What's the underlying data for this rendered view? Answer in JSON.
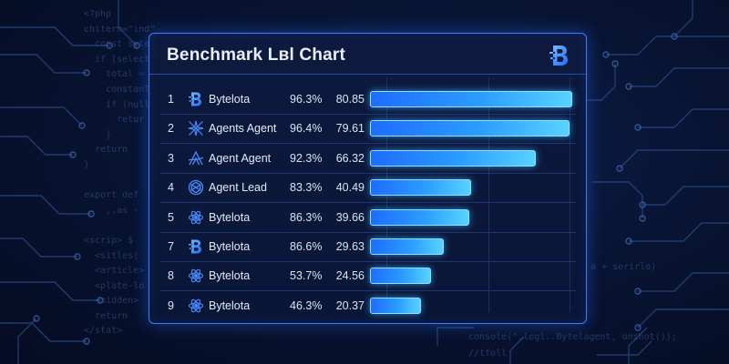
{
  "background_code": {
    "left": [
      "<?php",
      "chiterm=\"ind\"",
      "  const syte",
      "  if [select",
      "    total =",
      "    constanT",
      "    if (null",
      "      retur",
      "    }",
      "  return",
      "}",
      "",
      "export def",
      "    ,.as -",
      "",
      "<scrip> $",
      "  <sitles(",
      "  <article>",
      "  <plate-lo",
      "  <midden>",
      "  return",
      "</stat>"
    ],
    "right1": "a + sorirlo)",
    "right2": [
      "console(\".logi..Bytelagent, onshot());",
      "//tfoll"
    ]
  },
  "card": {
    "title": "Benchmark Lвl Chart",
    "brand_icon": "bytelota-b-logo"
  },
  "colors": {
    "bar_start": "#1f6cff",
    "bar_end": "#58d2ff",
    "card_border": "#3d7bff",
    "background": "#071029"
  },
  "chart_data": {
    "type": "bar",
    "orientation": "horizontal",
    "title": "Benchmark Lвl Chart",
    "xlim": [
      0,
      80.85
    ],
    "grid": true,
    "rows": [
      {
        "rank": "1",
        "icon": "b-logo-icon",
        "name": "Bytelota",
        "percent": "96.3%",
        "score": 80.85
      },
      {
        "rank": "2",
        "icon": "compass-star-icon",
        "name": "Agents Agent",
        "percent": "96.4%",
        "score": 79.61
      },
      {
        "rank": "3",
        "icon": "triangle-a-icon",
        "name": "Agent Agent",
        "percent": "92.3%",
        "score": 66.32
      },
      {
        "rank": "4",
        "icon": "knot-icon",
        "name": "Agent Lead",
        "percent": "83.3%",
        "score": 40.49
      },
      {
        "rank": "5",
        "icon": "atom-icon",
        "name": "Bytelota",
        "percent": "86.3%",
        "score": 39.66
      },
      {
        "rank": "7",
        "icon": "b-logo-icon",
        "name": "Bytelota",
        "percent": "86.6%",
        "score": 29.63
      },
      {
        "rank": "8",
        "icon": "atom-icon",
        "name": "Bytelota",
        "percent": "53.7%",
        "score": 24.56
      },
      {
        "rank": "9",
        "icon": "atom-icon",
        "name": "Bytelota",
        "percent": "46.3%",
        "score": 20.37
      }
    ]
  }
}
